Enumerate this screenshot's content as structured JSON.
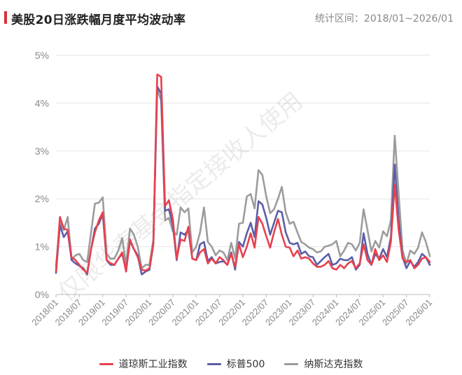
{
  "header": {
    "title": "美股20日涨跌幅月度平均波动率",
    "range": "统计区间：2018/01~2026/01"
  },
  "watermark": "仅限华泰基金指定接收人使用",
  "colors": {
    "accent": "#d9303b",
    "axis_text": "#888888",
    "grid": "#e6e6e6"
  },
  "chart_data": {
    "type": "line",
    "title": "美股20日涨跌幅月度平均波动率",
    "ylim": [
      0,
      5
    ],
    "yticks": [
      "0%",
      "1%",
      "2%",
      "3%",
      "4%",
      "5%"
    ],
    "xticks": [
      "2018/01",
      "2018/07",
      "2019/01",
      "2019/07",
      "2020/01",
      "2020/07",
      "2021/01",
      "2021/07",
      "2022/01",
      "2022/07",
      "2023/01",
      "2023/07",
      "2024/01",
      "2024/07",
      "2025/01",
      "2025/07",
      "2026/01"
    ],
    "grid": true,
    "legend": "bottom",
    "x_start": "2018/01",
    "x_end": "2026/01",
    "series": [
      {
        "name": "道琼斯工业指数",
        "color": "#e8414e",
        "values": [
          0.48,
          1.62,
          1.38,
          1.35,
          0.78,
          0.72,
          0.62,
          0.52,
          0.45,
          0.95,
          1.3,
          1.55,
          1.72,
          0.72,
          0.65,
          0.62,
          0.75,
          0.88,
          0.48,
          1.15,
          0.95,
          0.78,
          0.52,
          0.5,
          0.55,
          1.05,
          4.6,
          4.55,
          1.85,
          1.97,
          1.58,
          0.75,
          1.15,
          1.12,
          1.42,
          0.75,
          0.72,
          0.88,
          0.95,
          0.65,
          0.75,
          0.65,
          0.78,
          0.72,
          0.62,
          0.85,
          0.58,
          1.05,
          0.78,
          1.0,
          1.28,
          0.98,
          1.62,
          1.48,
          1.22,
          0.98,
          1.3,
          1.58,
          1.25,
          1.0,
          0.98,
          0.8,
          0.92,
          0.75,
          0.78,
          0.75,
          0.65,
          0.58,
          0.58,
          0.62,
          0.7,
          0.55,
          0.52,
          0.62,
          0.55,
          0.65,
          0.7,
          0.55,
          0.65,
          1.05,
          0.72,
          0.62,
          0.95,
          0.72,
          0.82,
          0.68,
          1.1,
          2.3,
          1.35,
          0.75,
          0.68,
          0.72,
          0.55,
          0.62,
          0.75,
          0.78,
          0.68
        ]
      },
      {
        "name": "标普500",
        "color": "#5a5fa8",
        "values": [
          0.45,
          1.45,
          1.2,
          1.32,
          0.72,
          0.65,
          0.6,
          0.55,
          0.42,
          0.95,
          1.38,
          1.48,
          1.68,
          0.72,
          0.62,
          0.62,
          0.75,
          0.85,
          0.52,
          1.12,
          0.95,
          0.82,
          0.42,
          0.48,
          0.52,
          1.05,
          4.35,
          4.2,
          1.75,
          1.78,
          1.45,
          0.72,
          1.3,
          1.25,
          1.35,
          0.75,
          0.72,
          1.05,
          1.1,
          0.7,
          0.78,
          0.65,
          0.68,
          0.7,
          0.62,
          0.88,
          0.52,
          1.1,
          1.0,
          1.28,
          1.5,
          1.2,
          1.95,
          1.88,
          1.6,
          1.25,
          1.5,
          1.75,
          1.72,
          1.3,
          1.08,
          1.05,
          1.08,
          0.85,
          0.9,
          0.8,
          0.78,
          0.62,
          0.7,
          0.78,
          0.85,
          0.62,
          0.65,
          0.75,
          0.72,
          0.72,
          0.78,
          0.52,
          0.62,
          1.28,
          0.85,
          0.62,
          0.85,
          0.75,
          0.95,
          0.78,
          1.2,
          2.72,
          1.55,
          0.78,
          0.55,
          0.7,
          0.58,
          0.68,
          0.85,
          0.78,
          0.62
        ]
      },
      {
        "name": "纳斯达克指数",
        "color": "#9c9c9c",
        "values": [
          0.6,
          1.5,
          1.35,
          1.62,
          0.72,
          0.82,
          0.85,
          0.72,
          0.68,
          1.3,
          1.9,
          1.92,
          2.03,
          0.85,
          0.75,
          0.75,
          0.92,
          1.18,
          0.62,
          1.38,
          1.25,
          1.0,
          0.55,
          0.62,
          0.62,
          1.15,
          4.3,
          4.05,
          1.55,
          1.6,
          1.32,
          1.25,
          1.82,
          1.72,
          1.8,
          0.88,
          1.0,
          1.3,
          1.82,
          1.1,
          1.0,
          0.82,
          0.92,
          0.88,
          0.72,
          1.08,
          0.75,
          1.48,
          1.5,
          2.05,
          2.1,
          1.8,
          2.6,
          2.5,
          2.05,
          1.7,
          1.78,
          2.0,
          2.25,
          1.72,
          1.48,
          1.52,
          1.3,
          1.1,
          1.05,
          0.98,
          0.95,
          0.88,
          0.9,
          1.0,
          1.02,
          1.05,
          1.12,
          0.8,
          0.92,
          1.08,
          1.05,
          0.92,
          1.08,
          1.78,
          1.35,
          0.9,
          1.12,
          0.98,
          1.32,
          1.22,
          1.55,
          3.32,
          2.1,
          0.92,
          0.65,
          0.92,
          0.85,
          0.98,
          1.3,
          1.1,
          0.8
        ]
      }
    ]
  }
}
